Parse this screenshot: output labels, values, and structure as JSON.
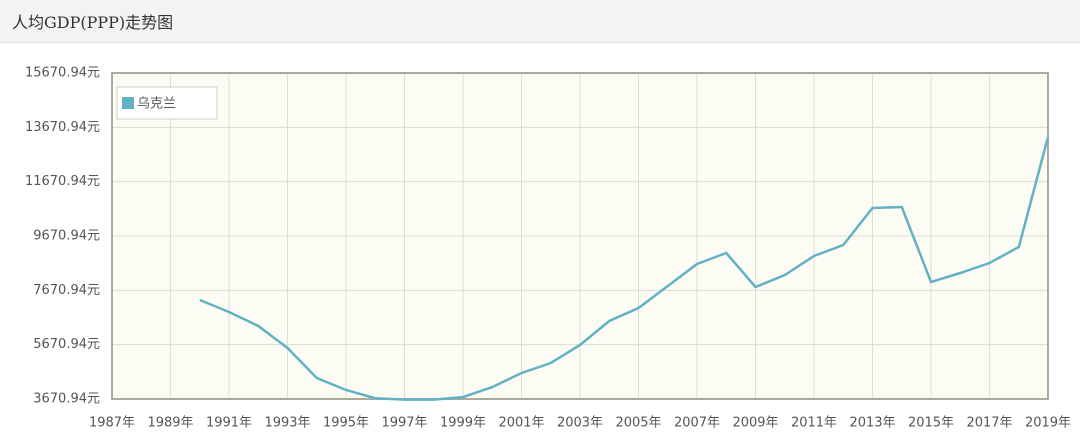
{
  "chart_data": {
    "type": "line",
    "title": "人均GDP(PPP)走势图",
    "categories": [
      "1987年",
      null,
      "1989年",
      null,
      "1991年",
      null,
      "1993年",
      null,
      "1995年",
      null,
      "1997年",
      null,
      "1999年",
      null,
      "2001年",
      null,
      "2003年",
      null,
      "2005年",
      null,
      "2007年",
      null,
      "2009年",
      null,
      "2011年",
      null,
      "2013年",
      null,
      "2015年",
      null,
      "2017年",
      null,
      "2019年"
    ],
    "series": [
      {
        "name": "乌克兰",
        "color": "#62b1c4",
        "values": [
          null,
          null,
          null,
          7315,
          6873,
          6358,
          5548,
          4444,
          4002,
          3700,
          3650,
          3650,
          3740,
          4110,
          4628,
          4996,
          5658,
          6542,
          7020,
          7830,
          8640,
          9044,
          7793,
          8235,
          8934,
          9339,
          10700,
          10737,
          7977,
          8308,
          8676,
          9265,
          13314
        ]
      }
    ],
    "ylim": [
      3670.94,
      15670.94
    ],
    "yticks": [
      {
        "value": 3670.94,
        "label": "3670.94元"
      },
      {
        "value": 5670.94,
        "label": "5670.94元"
      },
      {
        "value": 7670.94,
        "label": "7670.94元"
      },
      {
        "value": 9670.94,
        "label": "9670.94元"
      },
      {
        "value": 11670.94,
        "label": "11670.94元"
      },
      {
        "value": 13670.94,
        "label": "13670.94元"
      },
      {
        "value": 15670.94,
        "label": "15670.94元"
      }
    ],
    "grid": true,
    "legend": "top-left"
  }
}
